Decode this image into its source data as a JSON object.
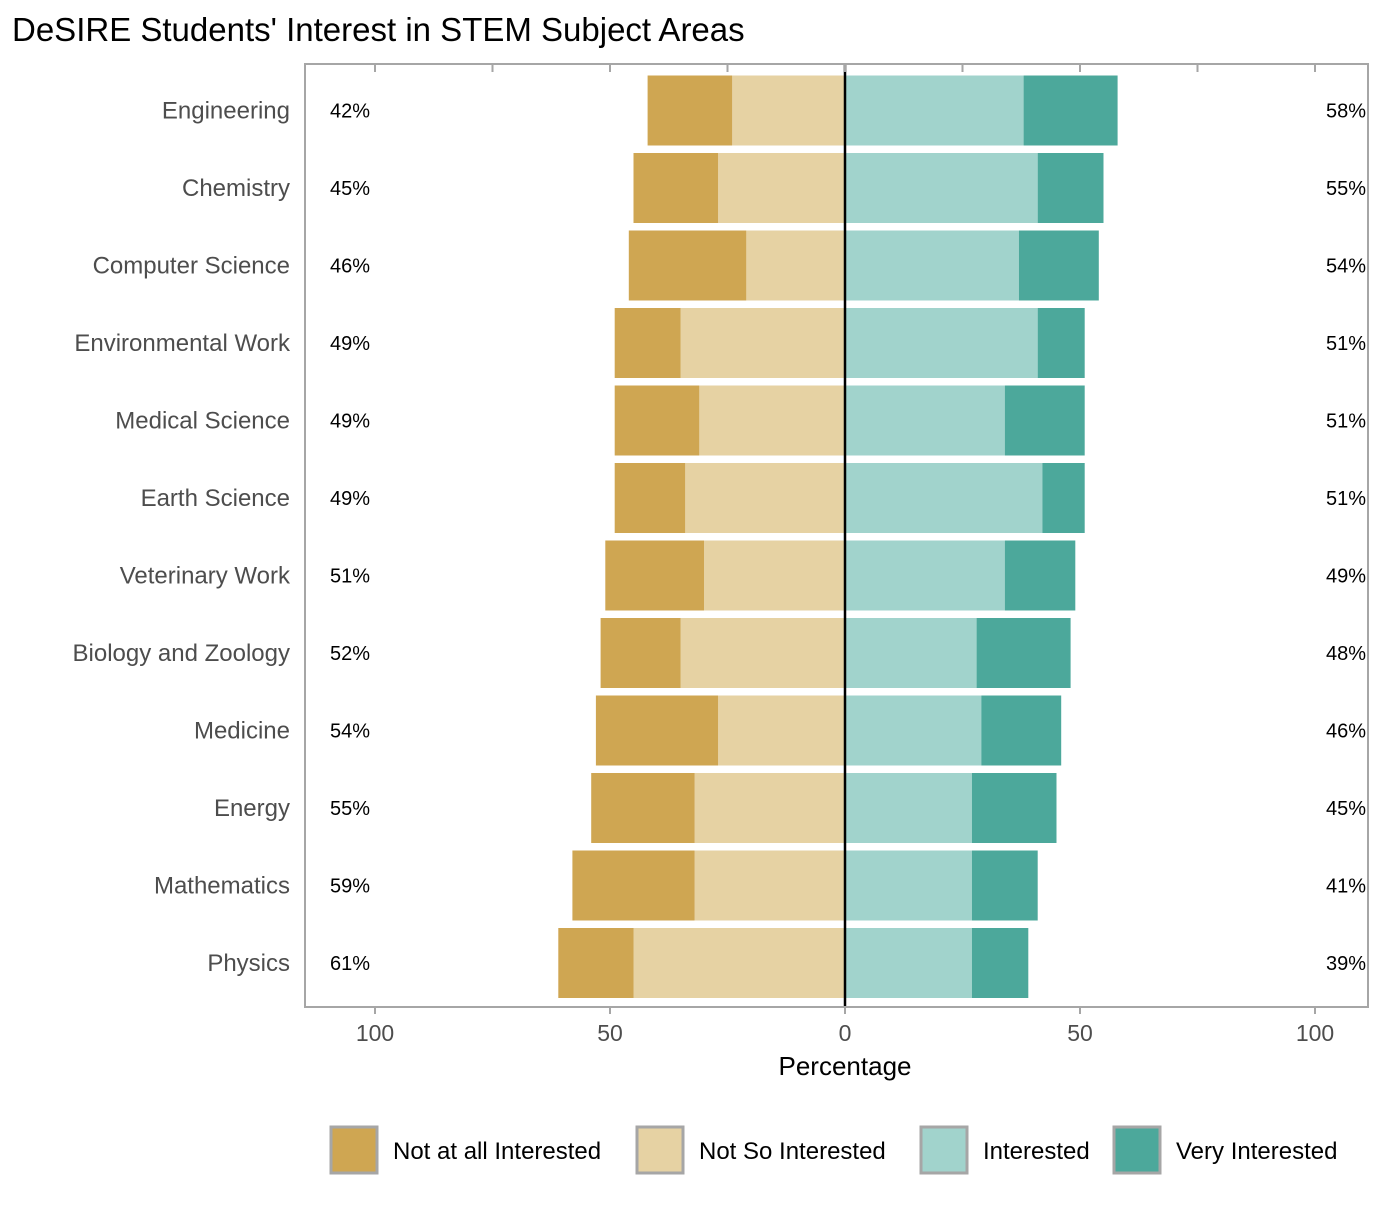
{
  "chart_data": {
    "type": "bar",
    "subtype": "diverging-stacked-bar",
    "title": "DeSIRE Students' Interest in STEM Subject Areas",
    "xlabel": "Percentage",
    "ylabel": "",
    "xlim": [
      -100,
      100
    ],
    "xticks": [
      -100,
      -50,
      0,
      50,
      100
    ],
    "xtick_labels": [
      "100",
      "50",
      "0",
      "50",
      "100"
    ],
    "grid": false,
    "legend_position": "bottom",
    "categories": [
      "Engineering",
      "Chemistry",
      "Computer Science",
      "Environmental Work",
      "Medical Science",
      "Earth Science",
      "Veterinary Work",
      "Biology and Zoology",
      "Medicine",
      "Energy",
      "Mathematics",
      "Physics"
    ],
    "series": [
      {
        "name": "Not at all Interested",
        "side": "negative",
        "color": "#CFA652",
        "values": [
          18,
          18,
          25,
          14,
          18,
          15,
          21,
          17,
          26,
          22,
          26,
          16
        ]
      },
      {
        "name": "Not So Interested",
        "side": "negative",
        "color": "#E6D2A3",
        "values": [
          24,
          27,
          21,
          35,
          31,
          34,
          30,
          35,
          27,
          32,
          32,
          45
        ]
      },
      {
        "name": "Interested",
        "side": "positive",
        "color": "#A1D3CC",
        "values": [
          38,
          41,
          37,
          41,
          34,
          42,
          34,
          28,
          29,
          27,
          27,
          27
        ]
      },
      {
        "name": "Very Interested",
        "side": "positive",
        "color": "#4CA89B",
        "values": [
          20,
          14,
          17,
          10,
          17,
          9,
          15,
          20,
          17,
          18,
          14,
          12
        ]
      }
    ],
    "left_percent_labels": [
      "42%",
      "45%",
      "46%",
      "49%",
      "49%",
      "49%",
      "51%",
      "52%",
      "54%",
      "55%",
      "59%",
      "61%"
    ],
    "right_percent_labels": [
      "58%",
      "55%",
      "54%",
      "51%",
      "51%",
      "51%",
      "49%",
      "48%",
      "46%",
      "45%",
      "41%",
      "39%"
    ]
  }
}
